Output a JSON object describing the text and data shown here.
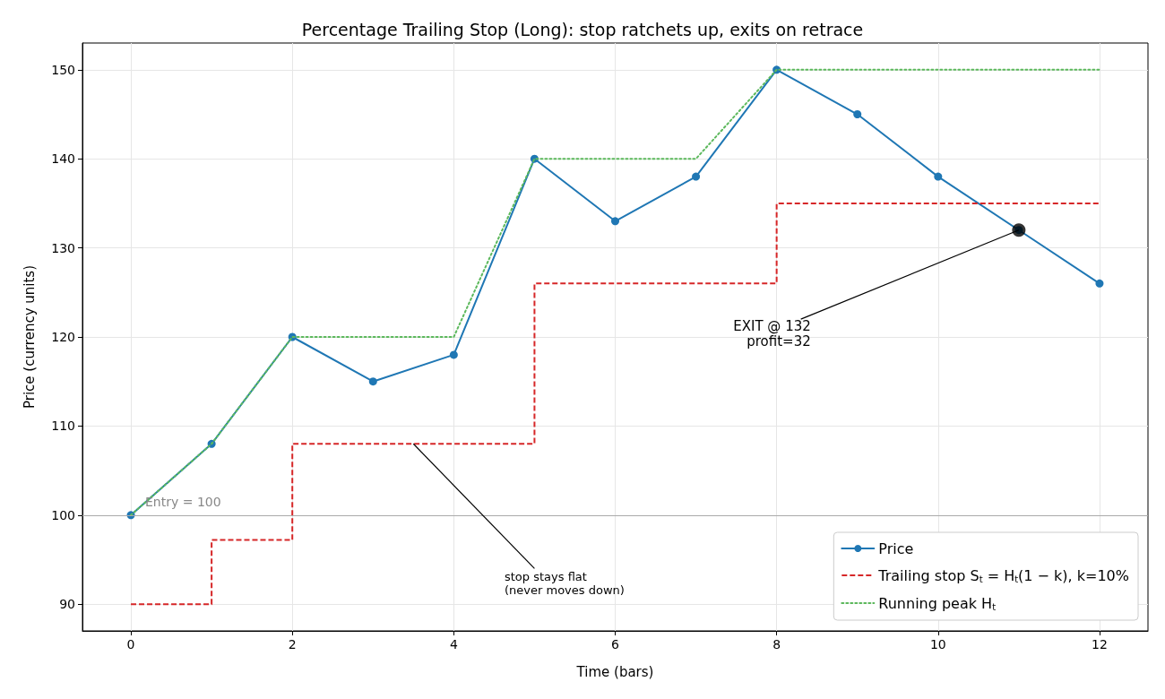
{
  "chart_data": {
    "type": "line",
    "title": "Percentage Trailing Stop (Long): stop ratchets up, exits on retrace",
    "xlabel": "Time (bars)",
    "ylabel": "Price (currency units)",
    "x": [
      0,
      1,
      2,
      3,
      4,
      5,
      6,
      7,
      8,
      9,
      10,
      11,
      12
    ],
    "series": [
      {
        "name": "Price",
        "type": "line",
        "color": "#1f77b4",
        "marker": "circle",
        "line_style": "solid",
        "values": [
          100,
          108,
          120,
          115,
          118,
          140,
          133,
          138,
          150,
          145,
          138,
          132,
          126
        ]
      },
      {
        "name": "Trailing stop S$_{t}$ = H$_{t}$(1 − k), k=10%",
        "type": "step",
        "color": "#d62728",
        "marker": "none",
        "line_style": "dashed",
        "values": [
          90,
          97.2,
          108,
          108,
          108,
          126,
          126,
          126,
          135,
          135,
          135,
          135,
          135
        ]
      },
      {
        "name": "Running peak H$_{t}$",
        "type": "line",
        "color": "#5cb85c",
        "marker": "none",
        "line_style": "dotted",
        "values": [
          100,
          108,
          120,
          120,
          120,
          140,
          140,
          140,
          150,
          150,
          150,
          150,
          150
        ]
      },
      {
        "type": "scatter",
        "color": "#000000",
        "marker": "circle",
        "x": [
          11
        ],
        "values": [
          132
        ]
      }
    ],
    "annotations": [
      {
        "text": "EXIT @ 132\nprofit=32",
        "x": 11,
        "y": 132
      },
      {
        "text": "stop stays flat\n(never moves down)",
        "x": 3.5,
        "y": 108
      }
    ],
    "ref_lines": [
      {
        "axis": "y",
        "value": 100,
        "label": "Entry = 100",
        "color": "#aaaaaa"
      }
    ],
    "xlim": [
      -0.6,
      12.6
    ],
    "xticks": [
      0,
      2,
      4,
      6,
      8,
      10,
      12
    ],
    "ylim": [
      87,
      153
    ],
    "yticks": [
      90,
      100,
      110,
      120,
      130,
      140,
      150
    ],
    "grid": true,
    "legend": "bottom right"
  }
}
